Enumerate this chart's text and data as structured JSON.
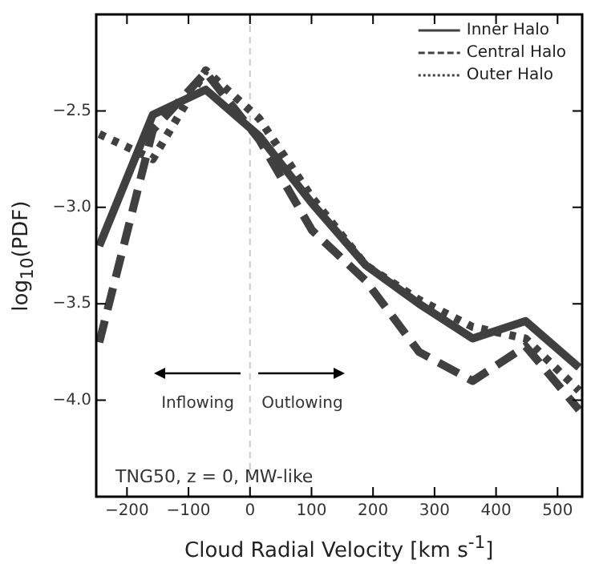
{
  "chart_data": {
    "type": "line",
    "xlabel": "Cloud Radial Velocity [km s$^{-1}$]",
    "ylabel": "log$_{10}$(PDF)",
    "x": [
      -245,
      -158,
      -72,
      15,
      101,
      188,
      275,
      362,
      448,
      535
    ],
    "series": [
      {
        "name": "Inner Halo",
        "color": "#404040",
        "line_style": "solid",
        "values": [
          -3.2,
          -2.52,
          -2.39,
          -2.63,
          -2.98,
          -3.3,
          -3.5,
          -3.68,
          -3.59,
          -3.83
        ]
      },
      {
        "name": "Central Halo",
        "color": "#404040",
        "line_style": "dashed",
        "values": [
          -3.7,
          -2.6,
          -2.3,
          -2.65,
          -3.12,
          -3.38,
          -3.75,
          -3.9,
          -3.72,
          -4.05
        ]
      },
      {
        "name": "Outer Halo",
        "color": "#404040",
        "line_style": "dotted",
        "values": [
          -2.62,
          -2.75,
          -2.29,
          -2.54,
          -2.95,
          -3.3,
          -3.48,
          -3.62,
          -3.68,
          -3.95
        ]
      }
    ],
    "xlim": [
      -250,
      540
    ],
    "ylim": [
      -4.5,
      -2.0
    ],
    "xticks": [
      {
        "value": -200,
        "label": "−200"
      },
      {
        "value": -100,
        "label": "−100"
      },
      0,
      100,
      200,
      300,
      400,
      500
    ],
    "yticks": [
      {
        "value": -2.5,
        "label": "−2.5"
      },
      {
        "value": -3.0,
        "label": "−3.0"
      },
      {
        "value": -3.5,
        "label": "−3.5"
      },
      {
        "value": -4.0,
        "label": "−4.0"
      }
    ],
    "ref_lines": [
      {
        "axis": "x",
        "value": 0,
        "color": "#cccccc",
        "line_style": "dashed"
      }
    ],
    "annotations": [
      "Inflowing",
      "Outlowing",
      "TNG50, z = 0, MW-like"
    ],
    "legend": "top right",
    "marker": "none",
    "grid": false
  }
}
